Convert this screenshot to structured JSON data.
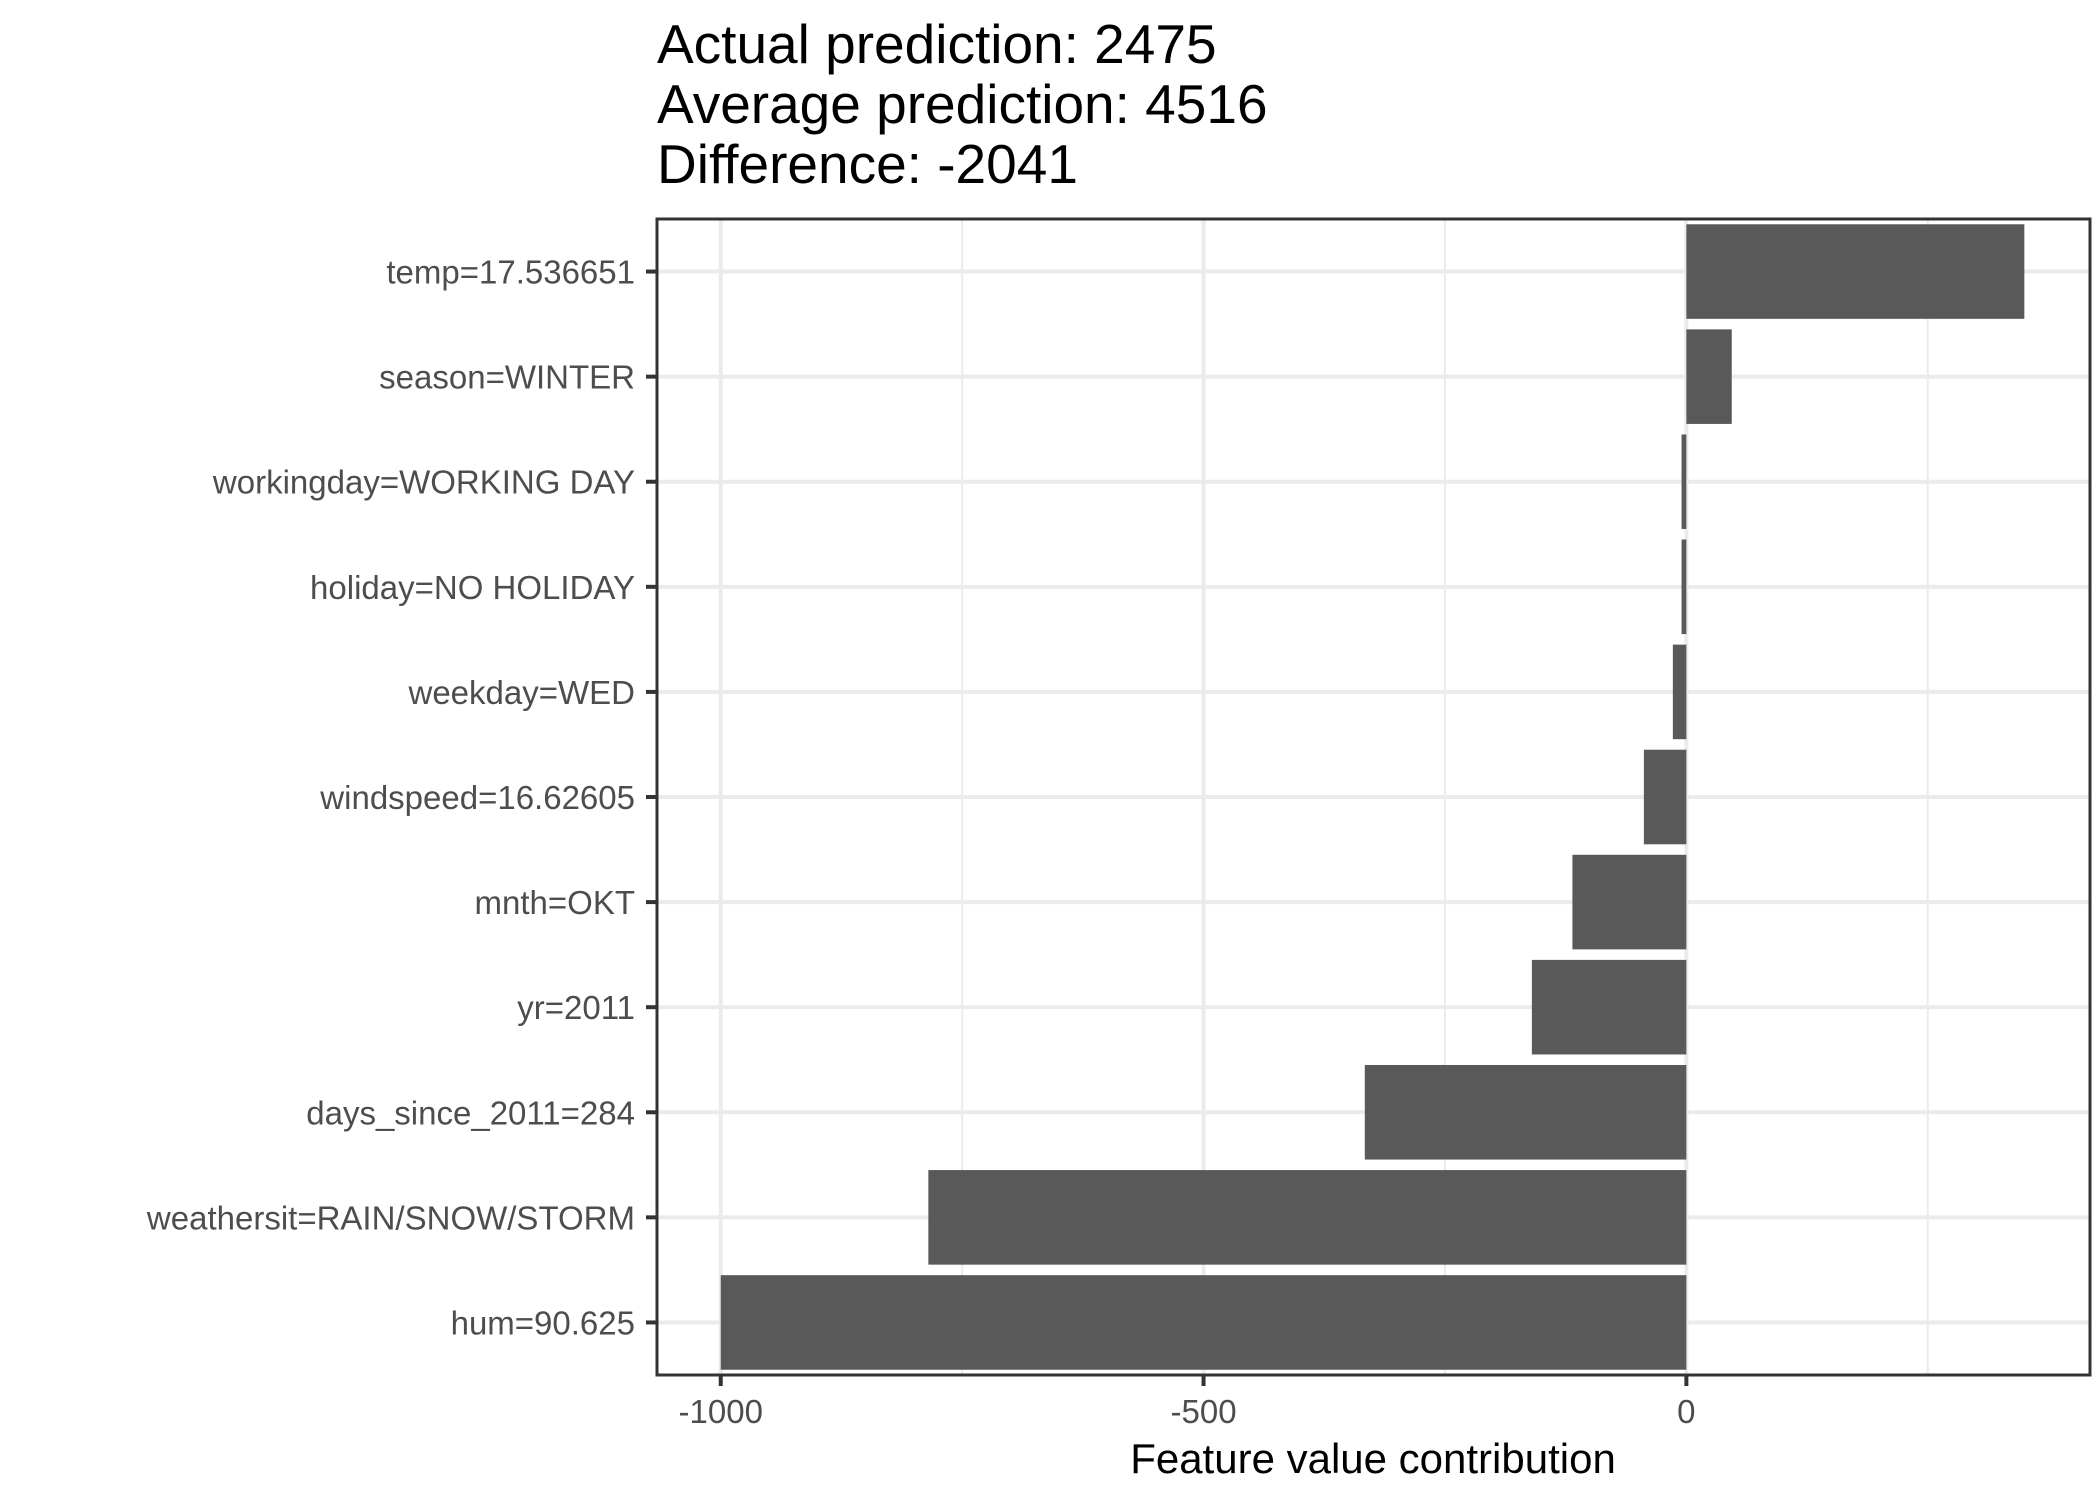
{
  "title_lines": [
    "Actual prediction: 2475",
    "Average prediction: 4516",
    "Difference: -2041"
  ],
  "chart_data": {
    "type": "bar",
    "orientation": "horizontal",
    "categories": [
      "temp=17.536651",
      "season=WINTER",
      "workingday=WORKING DAY",
      "holiday=NO HOLIDAY",
      "weekday=WED",
      "windspeed=16.62605",
      "mnth=OKT",
      "yr=2011",
      "days_since_2011=284",
      "weathersit=RAIN/SNOW/STORM",
      "hum=90.625"
    ],
    "values": [
      350,
      47,
      -5,
      -5,
      -14,
      -44,
      -118,
      -160,
      -333,
      -785,
      -1000
    ],
    "xlabel": "Feature value contribution",
    "ylabel": "",
    "xlim": [
      -1066,
      418
    ],
    "xticks": [
      -1000,
      -500,
      0
    ],
    "xtick_labels": [
      "-1000",
      "-500",
      "0"
    ],
    "grid": true,
    "bar_color": "#595959"
  }
}
